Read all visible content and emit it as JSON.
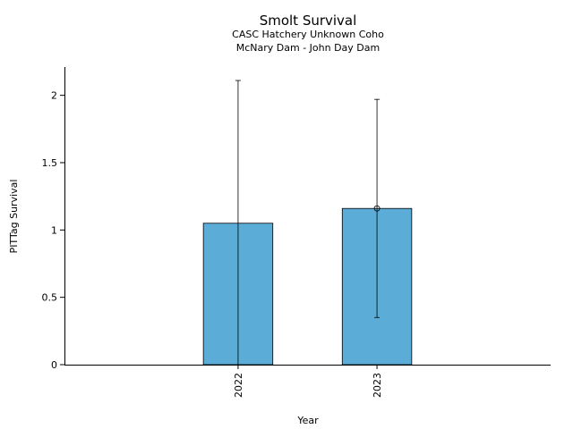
{
  "chart_data": {
    "type": "bar",
    "title": "Smolt Survival",
    "subtitle": [
      "CASC Hatchery Unknown Coho",
      "McNary Dam - John Day Dam"
    ],
    "xlabel": "Year",
    "ylabel": "PITTag Survival",
    "categories": [
      "2022",
      "2023"
    ],
    "values": [
      1.05,
      1.16
    ],
    "error_low": [
      0.0,
      0.35
    ],
    "error_high": [
      2.11,
      1.97
    ],
    "markers": [
      false,
      true
    ],
    "ylim": [
      0,
      2.21
    ],
    "yticks": [
      0,
      0.5,
      1,
      1.5,
      2
    ],
    "ytick_labels": [
      "0",
      "0.5",
      "1",
      "1.5",
      "2"
    ],
    "bar_color": "#5bacd6",
    "grid": false,
    "legend": "none"
  }
}
